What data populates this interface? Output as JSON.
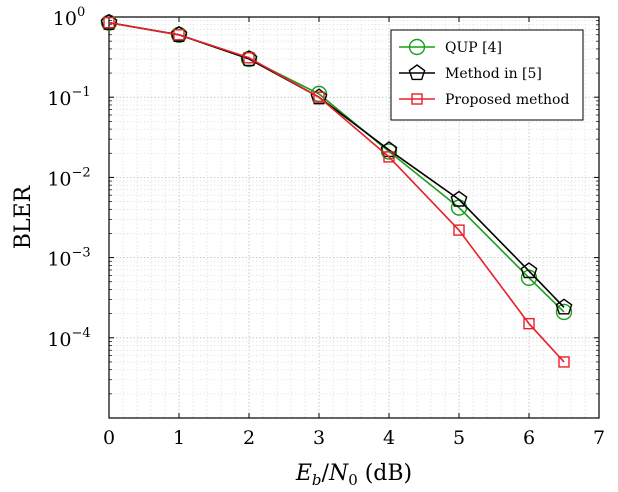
{
  "chart_data": {
    "type": "line",
    "xlabel": "E_b/N_0 (dB)",
    "ylabel": "BLER",
    "xlim": [
      0,
      7
    ],
    "ylim": [
      1e-05,
      1
    ],
    "yscale": "log",
    "grid": true,
    "legend_position": "top-right",
    "x_ticks": [
      0,
      1,
      2,
      3,
      4,
      5,
      6,
      7
    ],
    "y_ticks": [
      {
        "value": 1,
        "base": "10",
        "exp": "0"
      },
      {
        "value": 0.1,
        "base": "10",
        "exp": "−1"
      },
      {
        "value": 0.01,
        "base": "10",
        "exp": "−2"
      },
      {
        "value": 0.001,
        "base": "10",
        "exp": "−3"
      },
      {
        "value": 0.0001,
        "base": "10",
        "exp": "−4"
      }
    ],
    "series": [
      {
        "name": "QUP [4]",
        "color": "#1a9e1a",
        "marker": "circle",
        "x": [
          0,
          1,
          2,
          3,
          4,
          5,
          6,
          6.5
        ],
        "y": [
          0.85,
          0.6,
          0.3,
          0.11,
          0.021,
          0.0042,
          0.00056,
          0.00021
        ]
      },
      {
        "name": "Method in [5]",
        "color": "#000000",
        "marker": "pentagon",
        "x": [
          0,
          1,
          2,
          3,
          4,
          5,
          6,
          6.5
        ],
        "y": [
          0.85,
          0.6,
          0.3,
          0.1,
          0.022,
          0.0053,
          0.00068,
          0.00024
        ]
      },
      {
        "name": "Proposed method",
        "color": "#e8202a",
        "marker": "square",
        "x": [
          0,
          1,
          2,
          3,
          4,
          5,
          6,
          6.5
        ],
        "y": [
          0.85,
          0.6,
          0.31,
          0.1,
          0.018,
          0.0022,
          0.00015,
          5e-05
        ]
      }
    ]
  }
}
